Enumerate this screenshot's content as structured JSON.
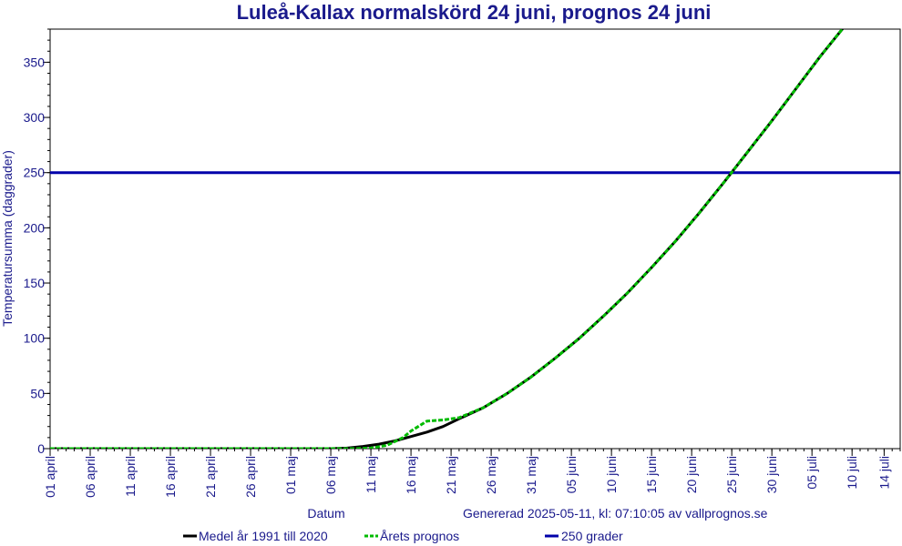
{
  "chart_data": {
    "type": "line",
    "title": "Luleå-Kallax normalskörd 24 juni, prognos 24 juni",
    "xlabel": "Datum",
    "ylabel": "Temperatursumma (daggrader)",
    "generated_note": "Genererad 2025-05-11, kl: 07:10:05 av vallprognos.se",
    "xlim": [
      "2025-04-01",
      "2025-07-16"
    ],
    "ylim": [
      0,
      380
    ],
    "x_tick_labels": [
      "01 april",
      "06 april",
      "11 april",
      "16 april",
      "21 april",
      "26 april",
      "01 maj",
      "06 maj",
      "11 maj",
      "16 maj",
      "21 maj",
      "26 maj",
      "31 maj",
      "05 juni",
      "10 juni",
      "15 juni",
      "20 juni",
      "25 juni",
      "30 juni",
      "05 juli",
      "10 juli",
      "14 juli"
    ],
    "x_tick_dates": [
      "2025-04-01",
      "2025-04-06",
      "2025-04-11",
      "2025-04-16",
      "2025-04-21",
      "2025-04-26",
      "2025-05-01",
      "2025-05-06",
      "2025-05-11",
      "2025-05-16",
      "2025-05-21",
      "2025-05-26",
      "2025-05-31",
      "2025-06-05",
      "2025-06-10",
      "2025-06-15",
      "2025-06-20",
      "2025-06-25",
      "2025-06-30",
      "2025-07-05",
      "2025-07-10",
      "2025-07-14"
    ],
    "y_tick_labels": [
      "0",
      "50",
      "100",
      "150",
      "200",
      "250",
      "300",
      "350"
    ],
    "y_tick_values": [
      0,
      50,
      100,
      150,
      200,
      250,
      300,
      350
    ],
    "grid": false,
    "legend_position": "bottom",
    "series": [
      {
        "name": "Medel år 1991 till 2020",
        "color": "#000000",
        "style": "solid",
        "x": [
          "2025-04-01",
          "2025-05-06",
          "2025-05-08",
          "2025-05-10",
          "2025-05-12",
          "2025-05-14",
          "2025-05-16",
          "2025-05-18",
          "2025-05-20",
          "2025-05-22",
          "2025-05-25",
          "2025-05-28",
          "2025-05-31",
          "2025-06-03",
          "2025-06-06",
          "2025-06-09",
          "2025-06-12",
          "2025-06-15",
          "2025-06-18",
          "2025-06-21",
          "2025-06-24",
          "2025-06-27",
          "2025-06-30",
          "2025-07-03",
          "2025-07-06",
          "2025-07-09",
          "2025-07-10"
        ],
        "y": [
          0,
          0,
          0.5,
          2,
          4,
          7,
          11,
          15,
          20,
          27,
          37,
          50,
          65,
          82,
          100,
          120,
          141,
          164,
          188,
          214,
          241,
          269,
          297,
          326,
          355,
          382,
          389
        ]
      },
      {
        "name": "Årets prognos",
        "color": "#00bb00",
        "style": "dashed",
        "x": [
          "2025-04-01",
          "2025-05-09",
          "2025-05-11",
          "2025-05-13",
          "2025-05-15",
          "2025-05-16",
          "2025-05-18",
          "2025-05-20",
          "2025-05-22",
          "2025-05-25",
          "2025-05-28",
          "2025-05-31",
          "2025-06-03",
          "2025-06-06",
          "2025-06-09",
          "2025-06-12",
          "2025-06-15",
          "2025-06-18",
          "2025-06-21",
          "2025-06-24",
          "2025-06-27",
          "2025-06-30",
          "2025-07-03",
          "2025-07-06",
          "2025-07-09",
          "2025-07-10"
        ],
        "y": [
          0,
          0,
          0.5,
          3,
          10,
          16,
          25,
          26,
          28,
          37,
          50,
          65,
          82,
          100,
          120,
          141,
          164,
          188,
          214,
          241,
          269,
          297,
          326,
          355,
          382,
          389
        ]
      },
      {
        "name": "250 grader",
        "color": "#0000aa",
        "style": "solid",
        "x": [
          "2025-04-01",
          "2025-07-16"
        ],
        "y": [
          250,
          250
        ]
      }
    ]
  }
}
